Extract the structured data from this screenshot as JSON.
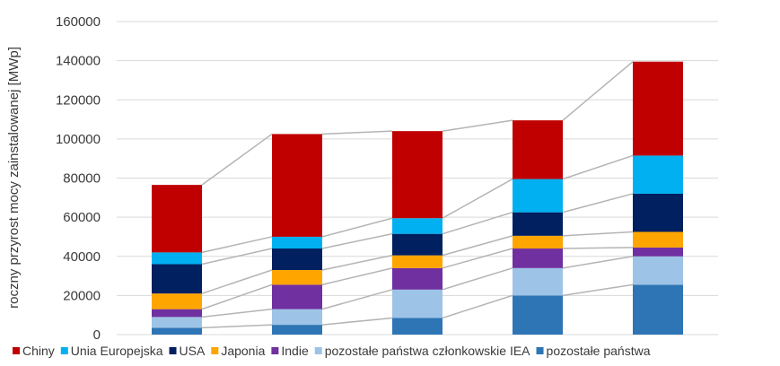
{
  "chart_data": {
    "type": "bar",
    "stacked": true,
    "title": "",
    "xlabel": "",
    "ylabel": "roczny przyrost mocy zainstalowanej [MWp]",
    "ylim": [
      0,
      160000
    ],
    "yticks": [
      0,
      20000,
      40000,
      60000,
      80000,
      100000,
      120000,
      140000,
      160000
    ],
    "grid": true,
    "legend_position": "bottom",
    "connector_lines": true,
    "categories": [
      "",
      "",
      "",
      "",
      ""
    ],
    "series": [
      {
        "name": "pozostałe państwa",
        "color": "#2e75b6",
        "values": [
          3500,
          5000,
          8500,
          20000,
          25500
        ]
      },
      {
        "name": "pozostałe państwa członkowskie IEA",
        "color": "#9dc3e6",
        "values": [
          5500,
          8000,
          14500,
          14000,
          14500
        ]
      },
      {
        "name": "Indie",
        "color": "#7030a0",
        "values": [
          4000,
          12500,
          11000,
          10000,
          4500
        ]
      },
      {
        "name": "Japonia",
        "color": "#ffa500",
        "values": [
          8000,
          7500,
          6500,
          6500,
          8000
        ]
      },
      {
        "name": "USA",
        "color": "#002060",
        "values": [
          15000,
          11000,
          11000,
          12000,
          19500
        ]
      },
      {
        "name": "Unia Europejska",
        "color": "#00b0f0",
        "values": [
          6000,
          6000,
          8000,
          17000,
          19500
        ]
      },
      {
        "name": "Chiny",
        "color": "#c00000",
        "values": [
          34500,
          52500,
          44500,
          30000,
          48000
        ]
      }
    ],
    "legend_order": [
      "Chiny",
      "Unia Europejska",
      "USA",
      "Japonia",
      "Indie",
      "pozostałe państwa członkowskie IEA",
      "pozostałe państwa"
    ],
    "gridline_color": "#d9d9d9",
    "connector_color": "#b4b4b4"
  }
}
